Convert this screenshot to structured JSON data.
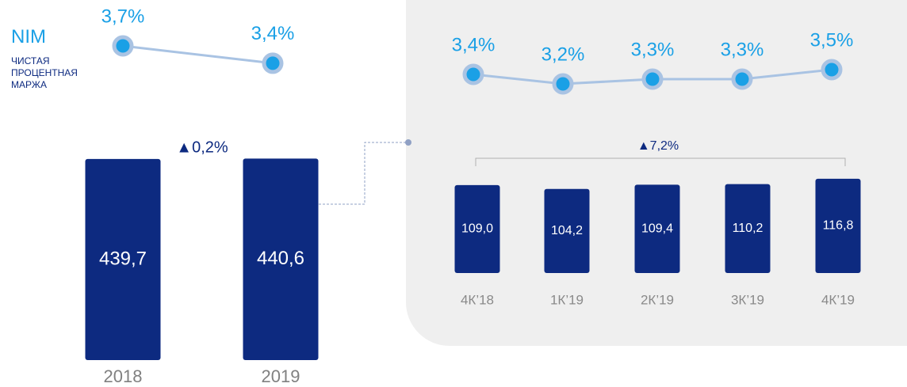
{
  "chart_data": [
    {
      "type": "bar",
      "categories": [
        "2018",
        "2019"
      ],
      "values": [
        439.7,
        440.6
      ],
      "value_labels": [
        "439,7",
        "440,6"
      ],
      "color": "#0d2a80",
      "annotation": "▲0,2%"
    },
    {
      "type": "line",
      "title": "NIM",
      "subtitle": "ЧИСТАЯ ПРОЦЕНТНАЯ МАРЖА",
      "values": [
        3.7,
        3.4
      ],
      "value_labels": [
        "3,7%",
        "3,4%"
      ],
      "color": "#1aa0e6"
    },
    {
      "type": "bar",
      "categories": [
        "4К’18",
        "1К’19",
        "2К’19",
        "3К’19",
        "4К’19"
      ],
      "values": [
        109.0,
        104.2,
        109.4,
        110.2,
        116.8
      ],
      "value_labels": [
        "109,0",
        "104,2",
        "109,4",
        "110,2",
        "116,8"
      ],
      "color": "#0d2a80",
      "annotation": "▲7,2%"
    },
    {
      "type": "line",
      "values": [
        3.4,
        3.2,
        3.3,
        3.3,
        3.5
      ],
      "value_labels": [
        "3,4%",
        "3,2%",
        "3,3%",
        "3,3%",
        "3,5%"
      ],
      "color": "#1aa0e6"
    }
  ]
}
